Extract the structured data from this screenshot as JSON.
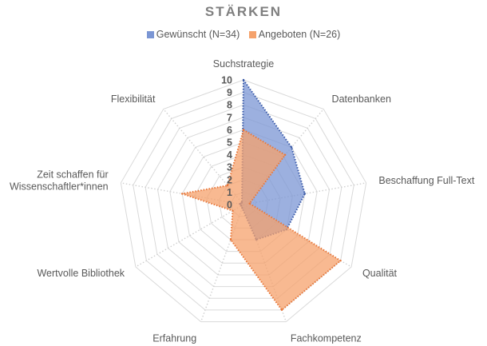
{
  "chart_data": {
    "type": "radar",
    "title": "STÄRKEN",
    "categories": [
      [
        "Suchstrategie"
      ],
      [
        "Datenbanken"
      ],
      [
        "Beschaffung Full-Text"
      ],
      [
        "Qualität"
      ],
      [
        "Fachkompetenz"
      ],
      [
        "Erfahrung"
      ],
      [
        "Wertvolle Bibliothek"
      ],
      [
        "Zeit schaffen für",
        "Wissenschaftler*innen"
      ],
      [
        "Flexibilität"
      ]
    ],
    "rlim": [
      0,
      10
    ],
    "ticks": [
      "0",
      "1",
      "2",
      "3",
      "4",
      "5",
      "6",
      "7",
      "8",
      "9",
      "10"
    ],
    "grid": true,
    "legend_position": "top",
    "series": [
      {
        "name": "Gewünscht (N=34)",
        "color": "#7b96d4",
        "line_color": "#3a5aa8",
        "opacity": 0.75,
        "values": [
          10,
          6,
          5,
          4,
          3,
          0.3,
          0.2,
          0.3,
          0.2
        ]
      },
      {
        "name": "Angeboten (N=26)",
        "color": "#f5a26c",
        "line_color": "#e8773a",
        "opacity": 0.75,
        "values": [
          6,
          5.2,
          0.5,
          9,
          9,
          3,
          1,
          5,
          2
        ]
      }
    ]
  }
}
